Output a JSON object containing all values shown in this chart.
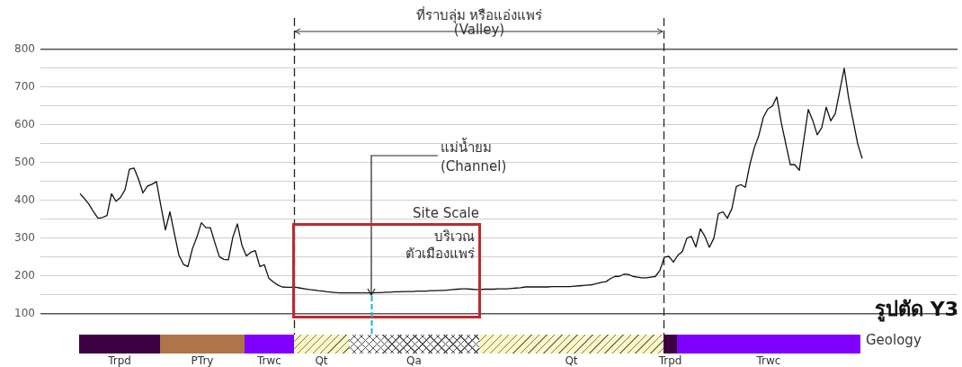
{
  "chart_data": {
    "type": "line",
    "title": "รูปตัด Y3",
    "categories": [
      null,
      null,
      null,
      null,
      null,
      null,
      null,
      null,
      null,
      null,
      null,
      null,
      null,
      null,
      null,
      null,
      null,
      null,
      null,
      null,
      null,
      null,
      null,
      null,
      null,
      null,
      null,
      null,
      null,
      null,
      null,
      null,
      null,
      null,
      null,
      null,
      null,
      null,
      null,
      null,
      null,
      null,
      null,
      null,
      null,
      null,
      null,
      null,
      null,
      null,
      null,
      null,
      null,
      null,
      null,
      null,
      null,
      null,
      null,
      null,
      null,
      null,
      null,
      null,
      null,
      null,
      null,
      null,
      null,
      null,
      null,
      null,
      null,
      null,
      null,
      null,
      null,
      null,
      null,
      null,
      null,
      null,
      null,
      null,
      null,
      null,
      null,
      null,
      null,
      null,
      null,
      null,
      null,
      null,
      null,
      null,
      null,
      null,
      null,
      null,
      null,
      null,
      null,
      null,
      null,
      null,
      null,
      null,
      null,
      null,
      null,
      null,
      null,
      null,
      null,
      null,
      null,
      null,
      null,
      null,
      null,
      null,
      null,
      null,
      null,
      null,
      null,
      null,
      null,
      null,
      null,
      null,
      null,
      null,
      null,
      null,
      null,
      null,
      null,
      null,
      null,
      null,
      null,
      null,
      null,
      null,
      null,
      null,
      null,
      null,
      null,
      null,
      null,
      null,
      null,
      null,
      null,
      null,
      null,
      null,
      null,
      null,
      null,
      null,
      null,
      null,
      null,
      null,
      null,
      null,
      null,
      null,
      null,
      null,
      null
    ],
    "series": [
      {
        "color": "#111111",
        "values": [
          418,
          405,
          390,
          370,
          353,
          355,
          360,
          418,
          398,
          408,
          428,
          483,
          486,
          457,
          420,
          438,
          443,
          450,
          385,
          322,
          370,
          312,
          255,
          231,
          225,
          272,
          303,
          341,
          328,
          328,
          288,
          251,
          244,
          243,
          303,
          338,
          282,
          253,
          263,
          267,
          225,
          230,
          194,
          184,
          176,
          171,
          170,
          170,
          170,
          168,
          166,
          164,
          163,
          161,
          160,
          158,
          157,
          156,
          155,
          155,
          155,
          155,
          155,
          155,
          155,
          155,
          156,
          156,
          157,
          157,
          158,
          158,
          159,
          159,
          159,
          160,
          160,
          160,
          161,
          161,
          162,
          162,
          163,
          164,
          165,
          166,
          166,
          165,
          164,
          164,
          165,
          165,
          165,
          166,
          166,
          166,
          167,
          168,
          169,
          171,
          171,
          171,
          171,
          171,
          171,
          172,
          172,
          172,
          172,
          172,
          173,
          174,
          175,
          176,
          177,
          180,
          183,
          185,
          193,
          199,
          199,
          205,
          204,
          199,
          197,
          195,
          195,
          197,
          199,
          215,
          250,
          252,
          237,
          255,
          265,
          300,
          305,
          277,
          325,
          305,
          276,
          300,
          365,
          370,
          353,
          378,
          437,
          442,
          435,
          495,
          540,
          572,
          620,
          642,
          650,
          674,
          606,
          550,
          495,
          495,
          480,
          560,
          641,
          612,
          574,
          593,
          647,
          611,
          630,
          690,
          750,
          670,
          610,
          550,
          511
        ]
      }
    ],
    "ylim": [
      100,
      800
    ],
    "yticks": [
      100,
      {
        "value": 150,
        "label": null
      },
      200,
      {
        "value": 250,
        "label": null
      },
      300,
      {
        "value": 350,
        "label": null
      },
      400,
      {
        "value": 450,
        "label": null
      },
      500,
      {
        "value": 550,
        "label": null
      },
      600,
      {
        "value": 650,
        "label": null
      },
      700,
      {
        "value": 750,
        "label": null
      },
      800
    ],
    "grid": "y",
    "annotations": [
      "ที่ราบลุ่ม หรือแอ่งแพร่",
      "(Valley)",
      "แม่น้ำยม",
      "(Channel)",
      "Site Scale",
      "บริเวณ",
      "ตัวเมืองแพร่",
      "Geology",
      "Trpd",
      "PTry",
      "Trwc",
      "Qt",
      "Qa",
      "Qt",
      "Trpd",
      "Trwc"
    ]
  }
}
